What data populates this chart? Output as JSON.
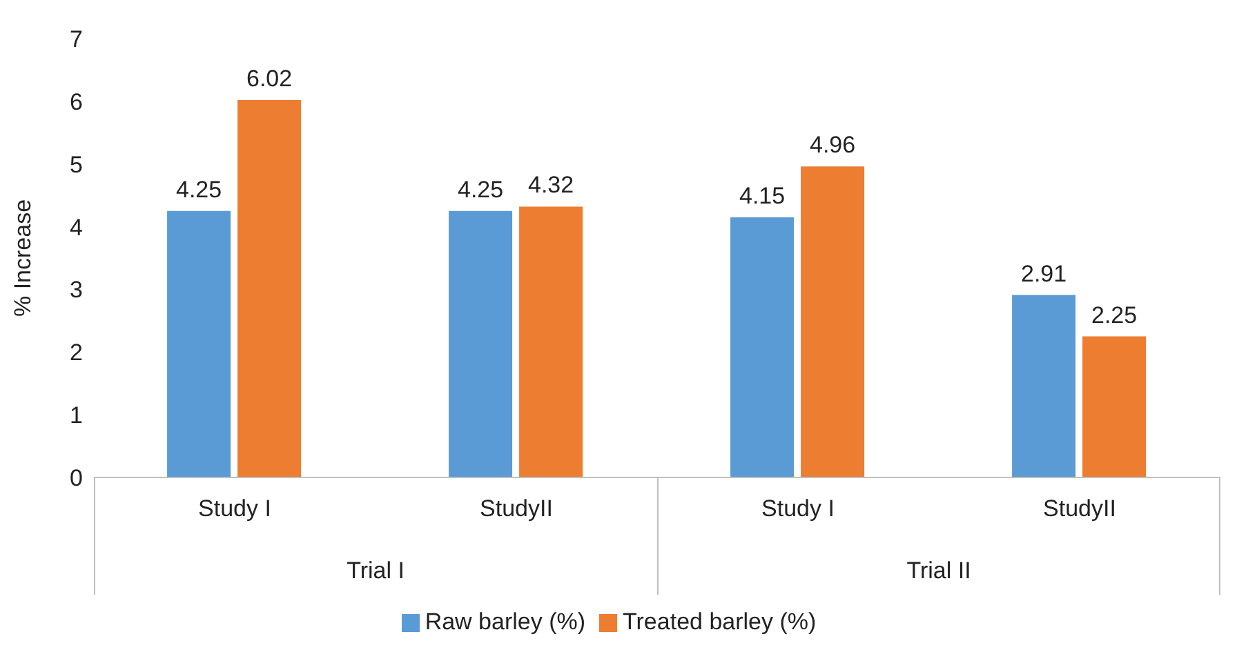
{
  "chart_data": {
    "type": "bar",
    "ylabel": "% Increase",
    "categories": [
      "Study I",
      "StudyII",
      "Study I",
      "StudyII"
    ],
    "series": [
      {
        "name": "Raw barley (%)",
        "color": "#5b9bd5",
        "values": [
          4.25,
          4.25,
          4.15,
          2.91
        ]
      },
      {
        "name": "Treated barley (%)",
        "color": "#ed7d31",
        "values": [
          6.02,
          4.32,
          4.96,
          2.25
        ]
      }
    ],
    "ylim": [
      0,
      7
    ],
    "yticks": [
      0,
      1,
      2,
      3,
      4,
      5,
      6,
      7
    ],
    "data_labels": true,
    "legend": "bottom",
    "grid": false,
    "annotations": [
      "Trial I",
      "Trial II"
    ]
  }
}
